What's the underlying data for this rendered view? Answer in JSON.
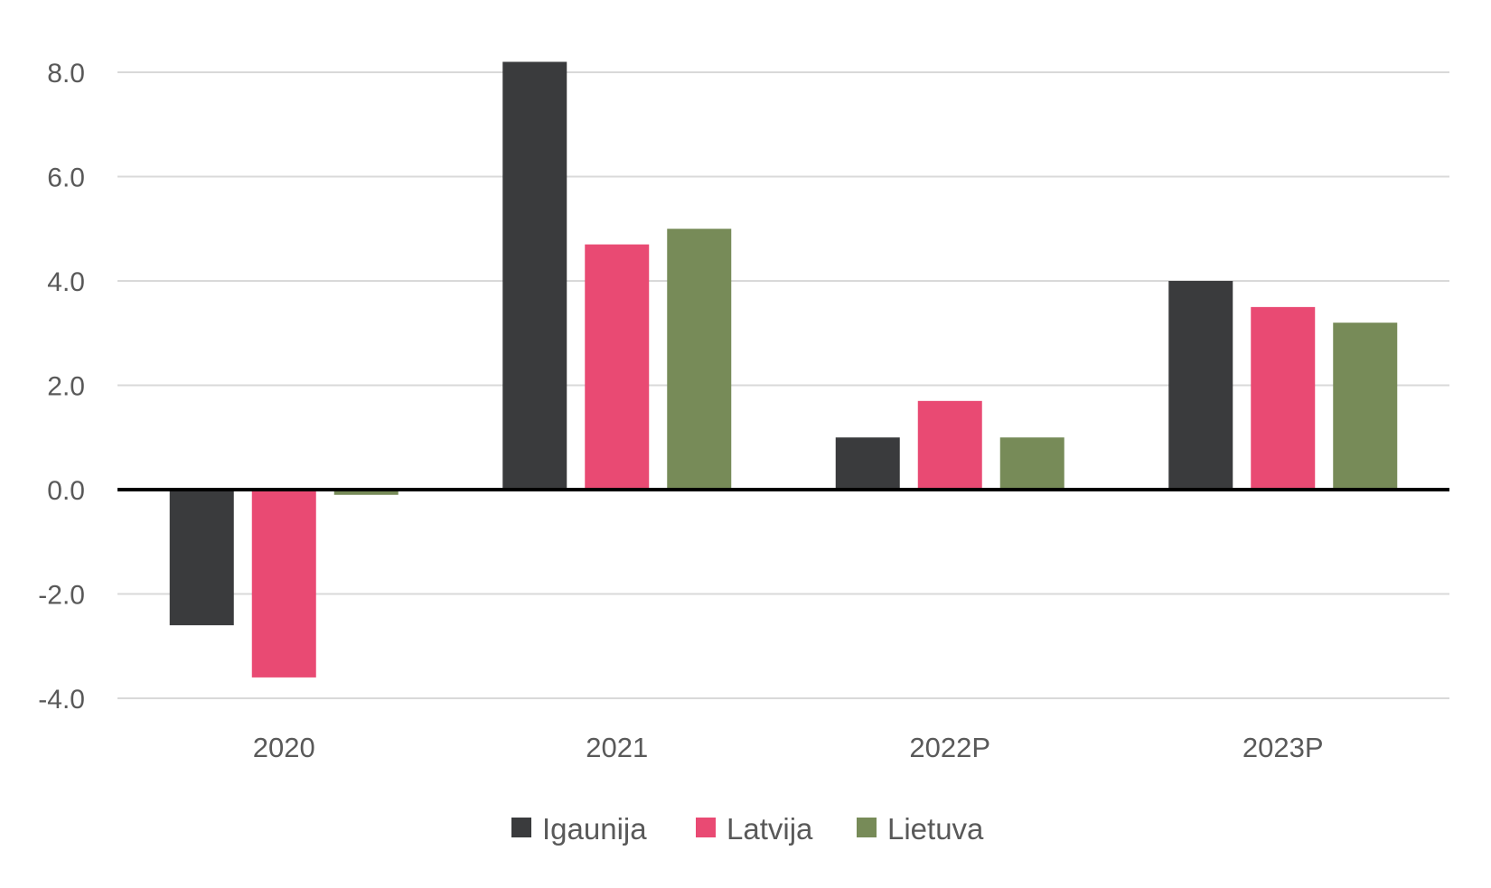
{
  "chart_data": {
    "type": "bar",
    "categories": [
      "2020",
      "2021",
      "2022P",
      "2023P"
    ],
    "series": [
      {
        "name": "Igaunija",
        "color": "#3a3b3d",
        "values": [
          -2.6,
          8.2,
          1.0,
          4.0
        ]
      },
      {
        "name": "Latvija",
        "color": "#e94a73",
        "values": [
          -3.6,
          4.7,
          1.7,
          3.5
        ]
      },
      {
        "name": "Lietuva",
        "color": "#778b58",
        "values": [
          -0.1,
          5.0,
          1.0,
          3.2
        ]
      }
    ],
    "yticks": [
      "8.0",
      "6.0",
      "4.0",
      "2.0",
      "0.0",
      "-2.0",
      "-4.0"
    ],
    "ylim": [
      -4,
      8
    ],
    "grid": true,
    "legend": "bottom",
    "title": "",
    "xlabel": "",
    "ylabel": ""
  }
}
